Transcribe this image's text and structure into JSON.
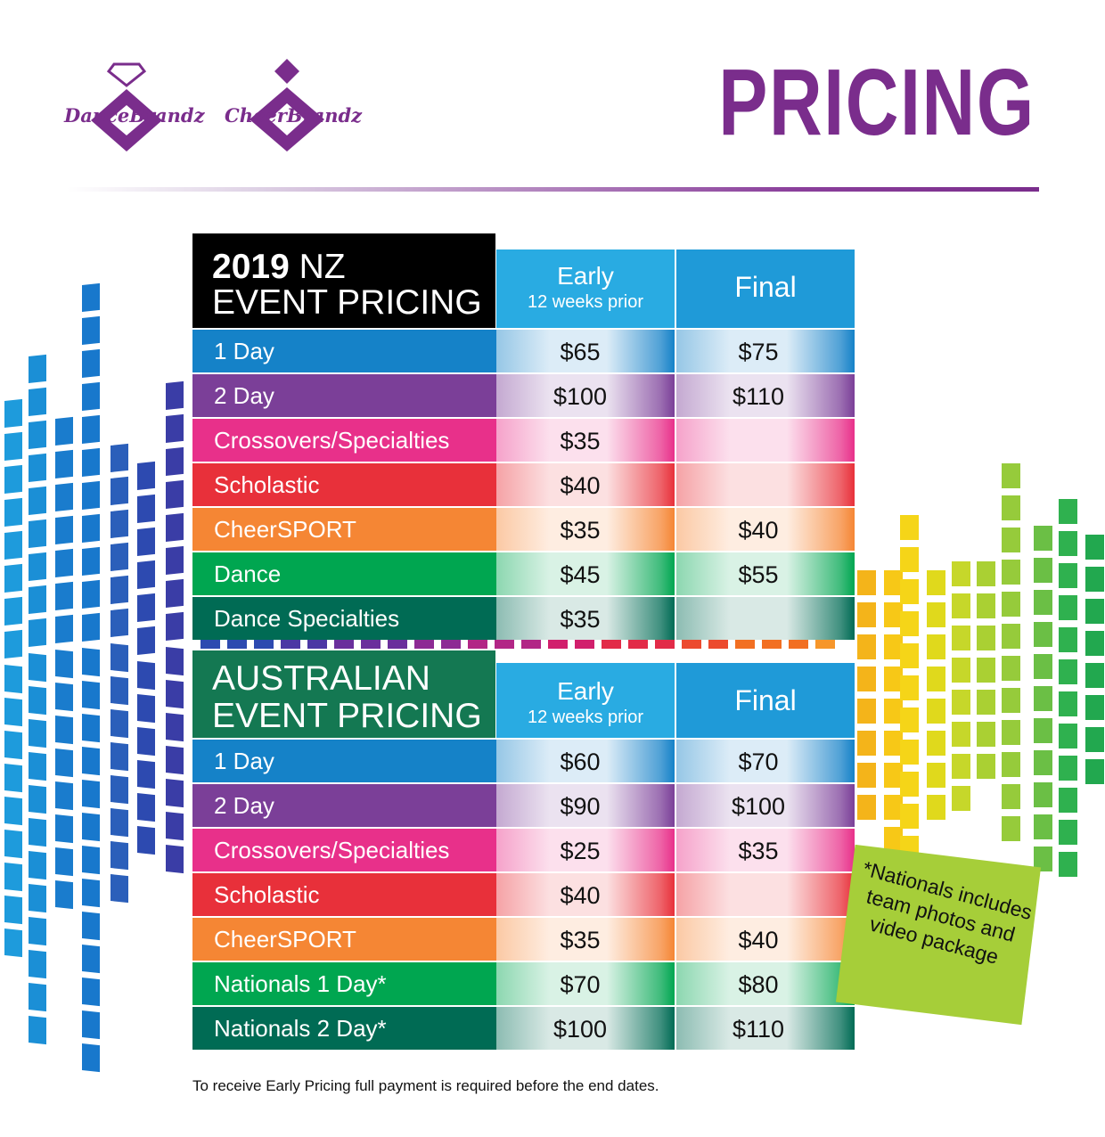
{
  "title": "PRICING",
  "logos": {
    "dance": "DanceBrandz",
    "cheer": "CheerBrandz"
  },
  "tables": [
    {
      "title_bold": "2019",
      "title_rest": " NZ",
      "title_line2": "EVENT PRICING",
      "title_bg": "#000000",
      "early_label": "Early",
      "early_sub": "12 weeks prior",
      "final_label": "Final",
      "rows": [
        {
          "label": "1 Day",
          "early": "$65",
          "final": "$75",
          "color": "#1582c8"
        },
        {
          "label": "2 Day",
          "early": "$100",
          "final": "$110",
          "color": "#7b3f98"
        },
        {
          "label": "Crossovers/Specialties",
          "early": "$35",
          "final": "",
          "color": "#e8308a"
        },
        {
          "label": "Scholastic",
          "early": "$40",
          "final": "",
          "color": "#e8303a"
        },
        {
          "label": "CheerSPORT",
          "early": "$35",
          "final": "$40",
          "color": "#f58634"
        },
        {
          "label": "Dance",
          "early": "$45",
          "final": "$55",
          "color": "#00a650"
        },
        {
          "label": "Dance Specialties",
          "early": "$35",
          "final": "",
          "color": "#006b54"
        }
      ]
    },
    {
      "title_bold": "",
      "title_rest": "AUSTRALIAN",
      "title_line2": "EVENT PRICING",
      "title_bg": "#147852",
      "early_label": "Early",
      "early_sub": "12 weeks prior",
      "final_label": "Final",
      "rows": [
        {
          "label": "1 Day",
          "early": "$60",
          "final": "$70",
          "color": "#1582c8"
        },
        {
          "label": "2 Day",
          "early": "$90",
          "final": "$100",
          "color": "#7b3f98"
        },
        {
          "label": "Crossovers/Specialties",
          "early": "$25",
          "final": "$35",
          "color": "#e8308a"
        },
        {
          "label": "Scholastic",
          "early": "$40",
          "final": "",
          "color": "#e8303a"
        },
        {
          "label": "CheerSPORT",
          "early": "$35",
          "final": "$40",
          "color": "#f58634"
        },
        {
          "label": "Nationals 1 Day*",
          "early": "$70",
          "final": "$80",
          "color": "#00a650"
        },
        {
          "label": "Nationals 2 Day*",
          "early": "$100",
          "final": "$110",
          "color": "#006b54"
        }
      ]
    }
  ],
  "note": "*Nationals includes team photos and video package",
  "footnote": "To receive Early Pricing full payment is required before the end dates.",
  "colors": {
    "brand_purple": "#7a2d8c",
    "header_blue": "#29abe2",
    "note_green": "#a6ce39"
  }
}
